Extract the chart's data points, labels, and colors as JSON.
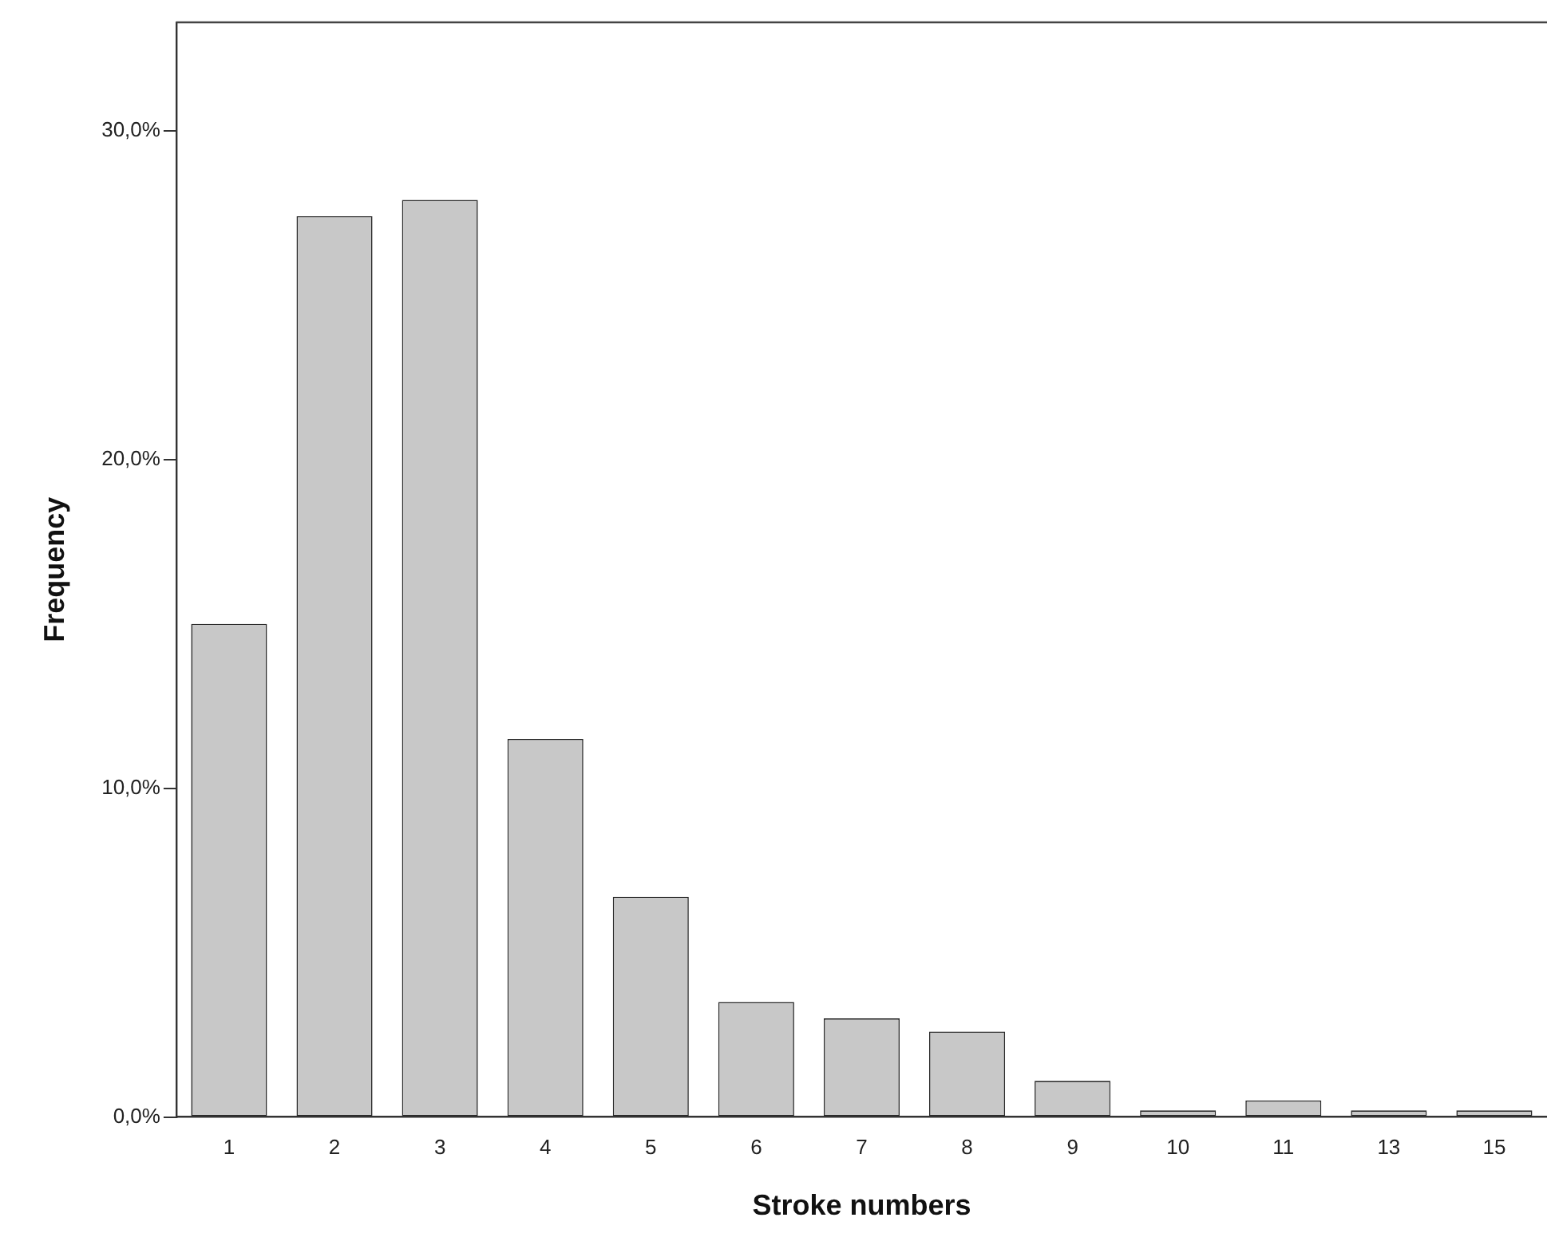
{
  "chart_data": {
    "type": "bar",
    "xlabel": "Stroke numbers",
    "ylabel": "Frequency",
    "categories": [
      "1",
      "2",
      "3",
      "4",
      "5",
      "6",
      "7",
      "8",
      "9",
      "10",
      "11",
      "13",
      "15"
    ],
    "values": [
      15.0,
      27.4,
      27.9,
      11.5,
      6.7,
      3.5,
      3.0,
      2.6,
      1.1,
      0.2,
      0.5,
      0.2,
      0.2
    ],
    "color": "#c8c8c8",
    "ylim": [
      0,
      33.3
    ],
    "yticks": [
      {
        "value": 0,
        "label": "0,0%"
      },
      {
        "value": 10,
        "label": "10,0%"
      },
      {
        "value": 20,
        "label": "20,0%"
      },
      {
        "value": 30,
        "label": "30,0%"
      }
    ],
    "grid": false,
    "legend": false
  }
}
